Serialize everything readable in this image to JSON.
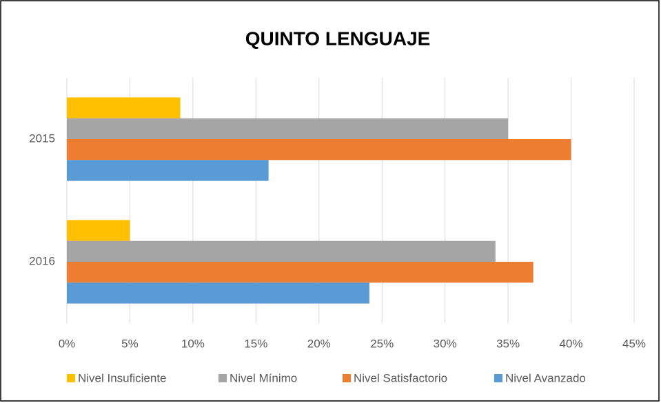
{
  "chart_data": {
    "type": "bar",
    "orientation": "horizontal",
    "title": "QUINTO LENGUAJE",
    "categories": [
      "2015",
      "2016"
    ],
    "series": [
      {
        "name": "Nivel Insuficiente",
        "color": "#FFC000",
        "values": [
          9,
          5
        ]
      },
      {
        "name": "Nivel Mínimo",
        "color": "#A5A5A5",
        "values": [
          35,
          34
        ]
      },
      {
        "name": "Nivel Satisfactorio",
        "color": "#ED7D31",
        "values": [
          40,
          37
        ]
      },
      {
        "name": "Nivel Avanzado",
        "color": "#5B9BD5",
        "values": [
          16,
          24
        ]
      }
    ],
    "xlim": [
      0,
      45
    ],
    "xticks": [
      {
        "value": 0,
        "label": "0%"
      },
      {
        "value": 5,
        "label": "5%"
      },
      {
        "value": 10,
        "label": "10%"
      },
      {
        "value": 15,
        "label": "15%"
      },
      {
        "value": 20,
        "label": "20%"
      },
      {
        "value": 25,
        "label": "25%"
      },
      {
        "value": 30,
        "label": "30%"
      },
      {
        "value": 35,
        "label": "35%"
      },
      {
        "value": 40,
        "label": "40%"
      },
      {
        "value": 45,
        "label": "45%"
      }
    ],
    "grid": true,
    "legend": "bottom"
  }
}
